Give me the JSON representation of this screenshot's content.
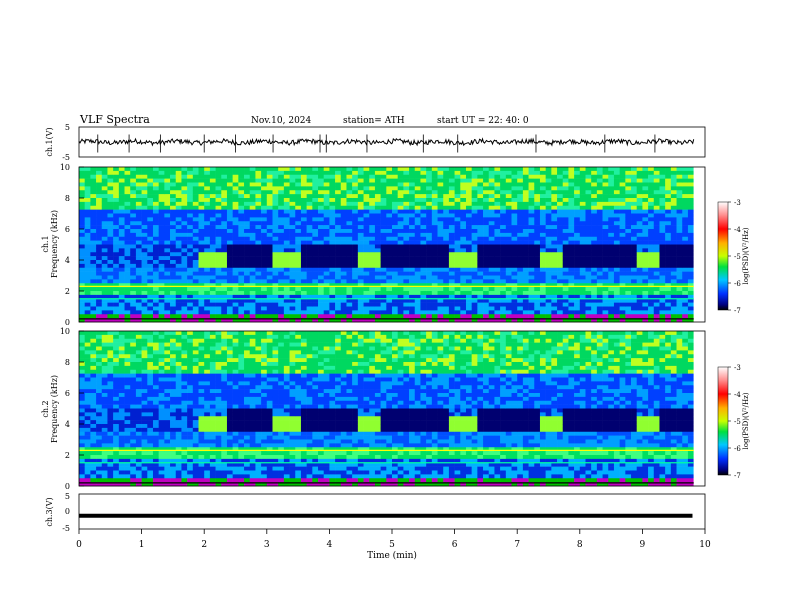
{
  "header": {
    "title": "VLF  Spectra",
    "date": "Nov.10, 2024",
    "station": "station= ATH",
    "start": "start  UT  =   22: 40: 0"
  },
  "chart_data": [
    {
      "type": "line",
      "panel": "ch1-waveform",
      "ylabel": "ch.1(V)",
      "ylim": [
        -5,
        5
      ],
      "yticks": [
        "5",
        "-5"
      ],
      "x_range": [
        0,
        10
      ],
      "series": [
        {
          "x": [
            0,
            10
          ],
          "values": [
            0,
            0
          ]
        }
      ]
    },
    {
      "type": "heatmap",
      "panel": "ch1-spectrogram",
      "ylabel": "ch.1\nFrequency  (kHz)",
      "ylim": [
        0,
        10
      ],
      "yticks": [
        "0",
        "2",
        "4",
        "6",
        "8",
        "10"
      ],
      "x_range": [
        0,
        10
      ],
      "bursts_min": [
        [
          1.95,
          2.35
        ],
        [
          3.07,
          3.52
        ],
        [
          4.48,
          4.82
        ],
        [
          5.95,
          6.33
        ],
        [
          7.4,
          7.72
        ],
        [
          8.9,
          9.3
        ]
      ],
      "burst_band_khz": [
        3.6,
        4.4
      ],
      "colorbar": {
        "label": "log(PSD)(V²/Hz)",
        "range": [
          -7,
          -3
        ],
        "ticks": [
          "-3",
          "-4",
          "-5",
          "-6",
          "-7"
        ]
      }
    },
    {
      "type": "heatmap",
      "panel": "ch2-spectrogram",
      "ylabel": "ch.2\nFrequency  (kHz)",
      "ylim": [
        0,
        10
      ],
      "yticks": [
        "0",
        "2",
        "4",
        "6",
        "8",
        "10"
      ],
      "x_range": [
        0,
        10
      ],
      "bursts_min": [
        [
          1.95,
          2.35
        ],
        [
          3.07,
          3.52
        ],
        [
          4.48,
          4.82
        ],
        [
          5.95,
          6.33
        ],
        [
          7.4,
          7.72
        ],
        [
          8.9,
          9.3
        ]
      ],
      "burst_band_khz": [
        3.6,
        4.4
      ],
      "colorbar": {
        "label": "log(PSD)(V²/Hz)",
        "range": [
          -7,
          -3
        ],
        "ticks": [
          "-3",
          "-4",
          "-5",
          "-6",
          "-7"
        ]
      }
    },
    {
      "type": "line",
      "panel": "ch3-waveform",
      "ylabel": "ch.3(V)",
      "ylim": [
        -5,
        5
      ],
      "yticks": [
        "5",
        "0",
        "-5"
      ],
      "x_range": [
        0,
        10
      ],
      "series": [
        {
          "x": [
            0,
            9.8
          ],
          "values": [
            -1.2,
            -1.2
          ]
        }
      ]
    }
  ],
  "xaxis": {
    "label": "Time  (min)",
    "ticks": [
      "0",
      "1",
      "2",
      "3",
      "4",
      "5",
      "6",
      "7",
      "8",
      "9",
      "10"
    ],
    "range": [
      0,
      10
    ]
  },
  "colors": {
    "spectrum_low": "#000080",
    "spectrum_mid": "#00c850",
    "spectrum_high": "#ff0000",
    "burst": "#9fff30"
  }
}
